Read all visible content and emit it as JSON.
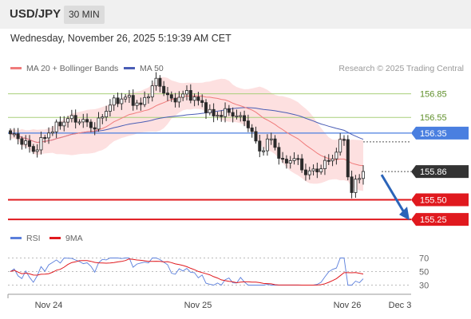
{
  "header": {
    "symbol": "USD/JPY",
    "timeframe": "30 MIN",
    "datetime": "Wednesday, November 26, 2025 5:19:39 AM CET"
  },
  "legend": {
    "ma20_label": "MA 20 + Bollinger Bands",
    "ma50_label": "MA 50",
    "credit": "Research © 2025 Trading Central",
    "rsi_label": "RSI",
    "ma9_label": "9MA"
  },
  "colors": {
    "candle": "#2a2a2a",
    "ma20": "#f07b7b",
    "ma50": "#4a5db5",
    "band_fill": "#fde0e0",
    "resistance": "#a8cf7a",
    "pivot": "#4a7fe0",
    "support": "#e0191e",
    "current_tag": "#333333",
    "arrow": "#2b64b9",
    "rsi": "#5b7fdc",
    "rsi_ma": "#e0191e"
  },
  "chart_data": [
    {
      "type": "candlestick",
      "title": "",
      "y_range": [
        155.15,
        157.05
      ],
      "x_ticks": [
        "Nov 24",
        "Nov 25",
        "Nov 26",
        "Dec 3"
      ],
      "levels": [
        {
          "label": "156.85",
          "value": 156.85,
          "kind": "resistance"
        },
        {
          "label": "156.55",
          "value": 156.55,
          "kind": "resistance"
        },
        {
          "label": "156.35",
          "value": 156.35,
          "kind": "pivot"
        },
        {
          "label": "155.86",
          "value": 155.86,
          "kind": "current"
        },
        {
          "label": "155.50",
          "value": 155.5,
          "kind": "support"
        },
        {
          "label": "155.25",
          "value": 155.25,
          "kind": "support"
        }
      ],
      "forecast_arrow": {
        "from": 155.86,
        "to": 155.25
      }
    },
    {
      "type": "line",
      "title": "",
      "y_range": [
        20,
        80
      ],
      "y_ticks": [
        70,
        50,
        30
      ]
    }
  ]
}
